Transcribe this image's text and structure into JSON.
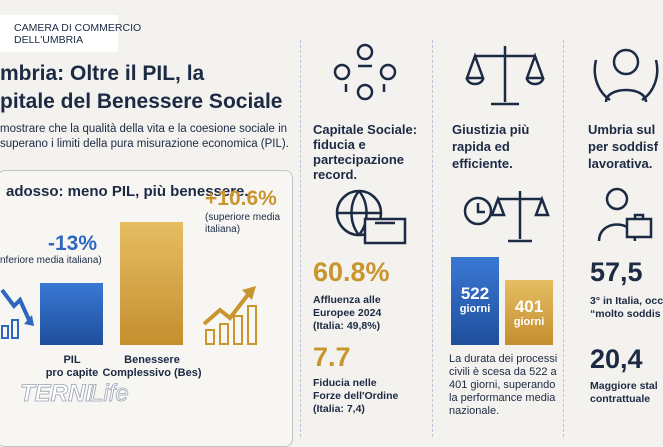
{
  "logo": {
    "lines": [
      "CAMERA DI COMMERCIO",
      "DELL'UMBRIA"
    ]
  },
  "header": {
    "title": [
      "mbria: Oltre il PIL, la",
      "pitale del Benessere Sociale"
    ],
    "subtitle": [
      "mostrare che la qualità della vita e la coesione sociale in",
      "superano i limiti della pura misurazione economica (PIL)."
    ]
  },
  "paradox": {
    "heading": "adosso: meno PIL, più benessere.",
    "pil": {
      "value": "-13%",
      "note": "nferiore media italiana)",
      "label": [
        "PIL",
        "pro capite"
      ]
    },
    "bes": {
      "value": "+10.6%",
      "note": [
        "(superiore media",
        "italiana)"
      ],
      "label": [
        "Benessere",
        "Complessivo (Bes)"
      ]
    }
  },
  "social": {
    "title": [
      "Capitale Sociale:",
      "fiducia e",
      "partecipazione",
      "record."
    ],
    "stats": [
      {
        "value": "60.8%",
        "text": [
          "Affluenza alle",
          "Europee 2024",
          "(Italia: 49,8%)"
        ]
      },
      {
        "value": "7.7",
        "text": [
          "Fiducia nelle",
          "Forze dell'Ordine",
          "(Italia: 7,4)"
        ]
      }
    ]
  },
  "justice": {
    "title": [
      "Giustizia più",
      "rapida ed",
      "efficiente."
    ],
    "bars": [
      {
        "value": "522",
        "unit": "giorni"
      },
      {
        "value": "401",
        "unit": "giorni"
      }
    ],
    "text": [
      "La durata dei processi",
      "civili è scesa da 522 a",
      "401 giorni, superando",
      "la performance media",
      "nazionale."
    ]
  },
  "work": {
    "title": [
      "Umbria sul",
      "per soddisf",
      "lavorativa."
    ],
    "stats": [
      {
        "value": "57,5",
        "text": [
          "3° in Italia, occ",
          "“molto soddis"
        ]
      },
      {
        "value": "20,4",
        "text": [
          "Maggiore stal",
          "contrattuale"
        ]
      }
    ]
  },
  "watermark": [
    "TERNI",
    "Life"
  ]
}
